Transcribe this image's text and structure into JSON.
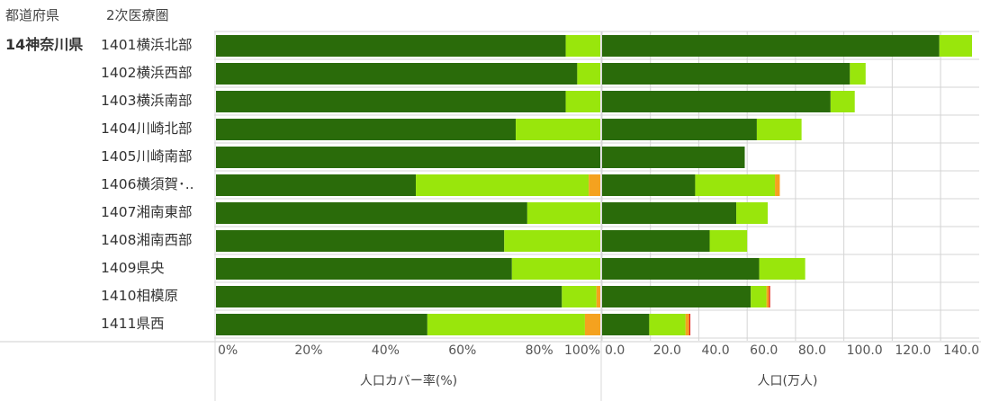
{
  "headers": {
    "prefecture": "都道府県",
    "region": "2次医療圏"
  },
  "prefecture": "14神奈川県",
  "colors": {
    "dark_green": "#2a6b0a",
    "light_green": "#99e60c",
    "orange": "#f5a21f",
    "red": "#e2231a",
    "grid": "#d4d4d4"
  },
  "chart_data": [
    {
      "type": "bar",
      "orientation": "horizontal",
      "stacked": true,
      "xlabel": "人口カバー率(%)",
      "xlim": [
        0,
        100
      ],
      "ticks": [
        "0%",
        "20%",
        "40%",
        "60%",
        "80%",
        "100%"
      ],
      "categories": [
        "1401横浜北部",
        "1402横浜西部",
        "1403横浜南部",
        "1404川崎北部",
        "1405川崎南部",
        "1406横須賀･..",
        "1407湘南東部",
        "1408湘南西部",
        "1409県央",
        "1410相模原",
        "1411県西"
      ],
      "series": [
        {
          "color": "dark_green",
          "values": [
            91,
            94,
            91,
            78,
            100,
            52,
            81,
            75,
            77,
            90,
            55
          ]
        },
        {
          "color": "light_green",
          "values": [
            9,
            6,
            9,
            22,
            0,
            45,
            19,
            25,
            23,
            9,
            41
          ]
        },
        {
          "color": "orange",
          "values": [
            0,
            0,
            0,
            0,
            0,
            3,
            0,
            0,
            0,
            1,
            4
          ]
        }
      ]
    },
    {
      "type": "bar",
      "orientation": "horizontal",
      "stacked": true,
      "xlabel": "人口(万人)",
      "xlim": [
        0,
        153
      ],
      "ticks": [
        0,
        20,
        40,
        60,
        80,
        100,
        120,
        140
      ],
      "tick_labels": [
        "0.0",
        "20.0",
        "40.0",
        "60.0",
        "80.0",
        "100.0",
        "120.0",
        "140.0"
      ],
      "categories": [
        "1401横浜北部",
        "1402横浜西部",
        "1403横浜南部",
        "1404川崎北部",
        "1405川崎南部",
        "1406横須賀･..",
        "1407湘南東部",
        "1408湘南西部",
        "1409県央",
        "1410相模原",
        "1411県西"
      ],
      "series": [
        {
          "color": "dark_green",
          "values": [
            139.5,
            102.5,
            94.5,
            64.0,
            59.0,
            38.5,
            55.5,
            44.5,
            65.0,
            61.5,
            19.5
          ]
        },
        {
          "color": "light_green",
          "values": [
            13.5,
            6.5,
            10.0,
            18.5,
            0,
            33.0,
            13.0,
            15.5,
            19.0,
            6.5,
            15.0
          ]
        },
        {
          "color": "orange",
          "values": [
            0,
            0,
            0,
            0,
            0,
            2.0,
            0,
            0,
            0,
            1.0,
            1.5
          ]
        },
        {
          "color": "red",
          "values": [
            0,
            0,
            0,
            0,
            0,
            0,
            0,
            0,
            0,
            0.5,
            0.5
          ]
        }
      ]
    }
  ]
}
